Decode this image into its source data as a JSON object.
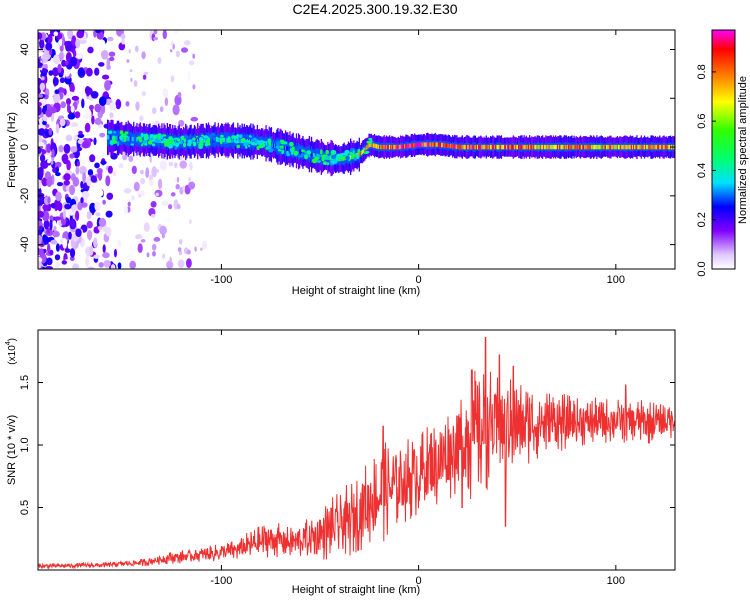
{
  "title": "C2E4.2025.300.19.32.E30",
  "chart_data": [
    {
      "type": "heatmap",
      "name": "spectrogram",
      "xlabel": "Height of straight line (km)",
      "ylabel": "Frequency (Hz)",
      "xlim": [
        -193,
        130
      ],
      "ylim": [
        -50,
        48
      ],
      "xticks": [
        -100,
        0,
        100
      ],
      "xtick_labels": [
        "-100",
        "0",
        "100"
      ],
      "yticks": [
        -40,
        -20,
        0,
        20,
        40
      ],
      "ytick_labels": [
        "-40",
        "-20",
        "0",
        "20",
        "40"
      ],
      "colorbar": {
        "label": "Normalized spectral amplitude",
        "range": [
          0,
          0.97
        ],
        "ticks": [
          0.0,
          0.2,
          0.4,
          0.6,
          0.8
        ],
        "tick_labels": [
          "0.0",
          "0.2",
          "0.4",
          "0.6",
          "0.8"
        ]
      },
      "ridge": {
        "x": [
          -158,
          -140,
          -120,
          -100,
          -80,
          -60,
          -50,
          -40,
          -35,
          -30,
          -25,
          -20,
          -10,
          0,
          10,
          20,
          40,
          60,
          80,
          100,
          120,
          130
        ],
        "freq": [
          4,
          3,
          2,
          3,
          2,
          -2,
          -4,
          -5,
          -4,
          -3,
          1,
          0,
          0,
          1,
          1,
          0,
          0,
          0,
          0,
          0,
          0,
          0
        ],
        "amplitude": [
          0.35,
          0.35,
          0.35,
          0.38,
          0.35,
          0.3,
          0.4,
          0.5,
          0.7,
          0.85,
          0.75,
          0.9,
          0.95,
          0.95,
          0.9,
          0.9,
          0.9,
          0.85,
          0.85,
          0.8,
          0.85,
          0.85
        ]
      }
    },
    {
      "type": "line",
      "name": "snr",
      "xlabel": "Height of straight line (km)",
      "ylabel": "SNR (10 * v/v)",
      "y_multiplier": "(x10",
      "y_multiplier_exp": "4",
      "xlim": [
        -193,
        130
      ],
      "ylim": [
        0,
        1.92
      ],
      "xticks": [
        -100,
        0,
        100
      ],
      "xtick_labels": [
        "-100",
        "0",
        "100"
      ],
      "yticks": [
        0.5,
        1.0,
        1.5
      ],
      "ytick_labels": [
        "0.5",
        "1.0",
        "1.5"
      ],
      "series": [
        {
          "name": "SNR",
          "color": "#ee3030",
          "envelope": {
            "x": [
              -193,
              -160,
              -140,
              -125,
              -110,
              -95,
              -85,
              -75,
              -65,
              -55,
              -45,
              -35,
              -25,
              -18,
              -10,
              0,
              10,
              20,
              25,
              35,
              45,
              60,
              80,
              100,
              115,
              130
            ],
            "base": [
              0.03,
              0.04,
              0.06,
              0.1,
              0.12,
              0.15,
              0.2,
              0.25,
              0.22,
              0.25,
              0.32,
              0.4,
              0.55,
              0.62,
              0.7,
              0.78,
              0.85,
              1.0,
              1.05,
              1.12,
              1.15,
              1.18,
              1.18,
              1.2,
              1.18,
              1.2
            ],
            "amp": [
              0.02,
              0.02,
              0.03,
              0.05,
              0.06,
              0.08,
              0.12,
              0.15,
              0.12,
              0.18,
              0.25,
              0.3,
              0.35,
              0.4,
              0.35,
              0.35,
              0.35,
              0.4,
              0.55,
              0.5,
              0.4,
              0.3,
              0.2,
              0.18,
              0.18,
              0.15
            ]
          },
          "peaks": [
            {
              "x": -18,
              "y": 1.15
            },
            {
              "x": 27,
              "y": 1.6
            },
            {
              "x": 34,
              "y": 1.86
            },
            {
              "x": 41,
              "y": 1.72
            },
            {
              "x": 48,
              "y": 1.63
            },
            {
              "x": 105,
              "y": 1.48
            }
          ],
          "dips": [
            {
              "x": 22,
              "y": 0.5
            },
            {
              "x": 44,
              "y": 0.35
            }
          ]
        }
      ]
    }
  ]
}
